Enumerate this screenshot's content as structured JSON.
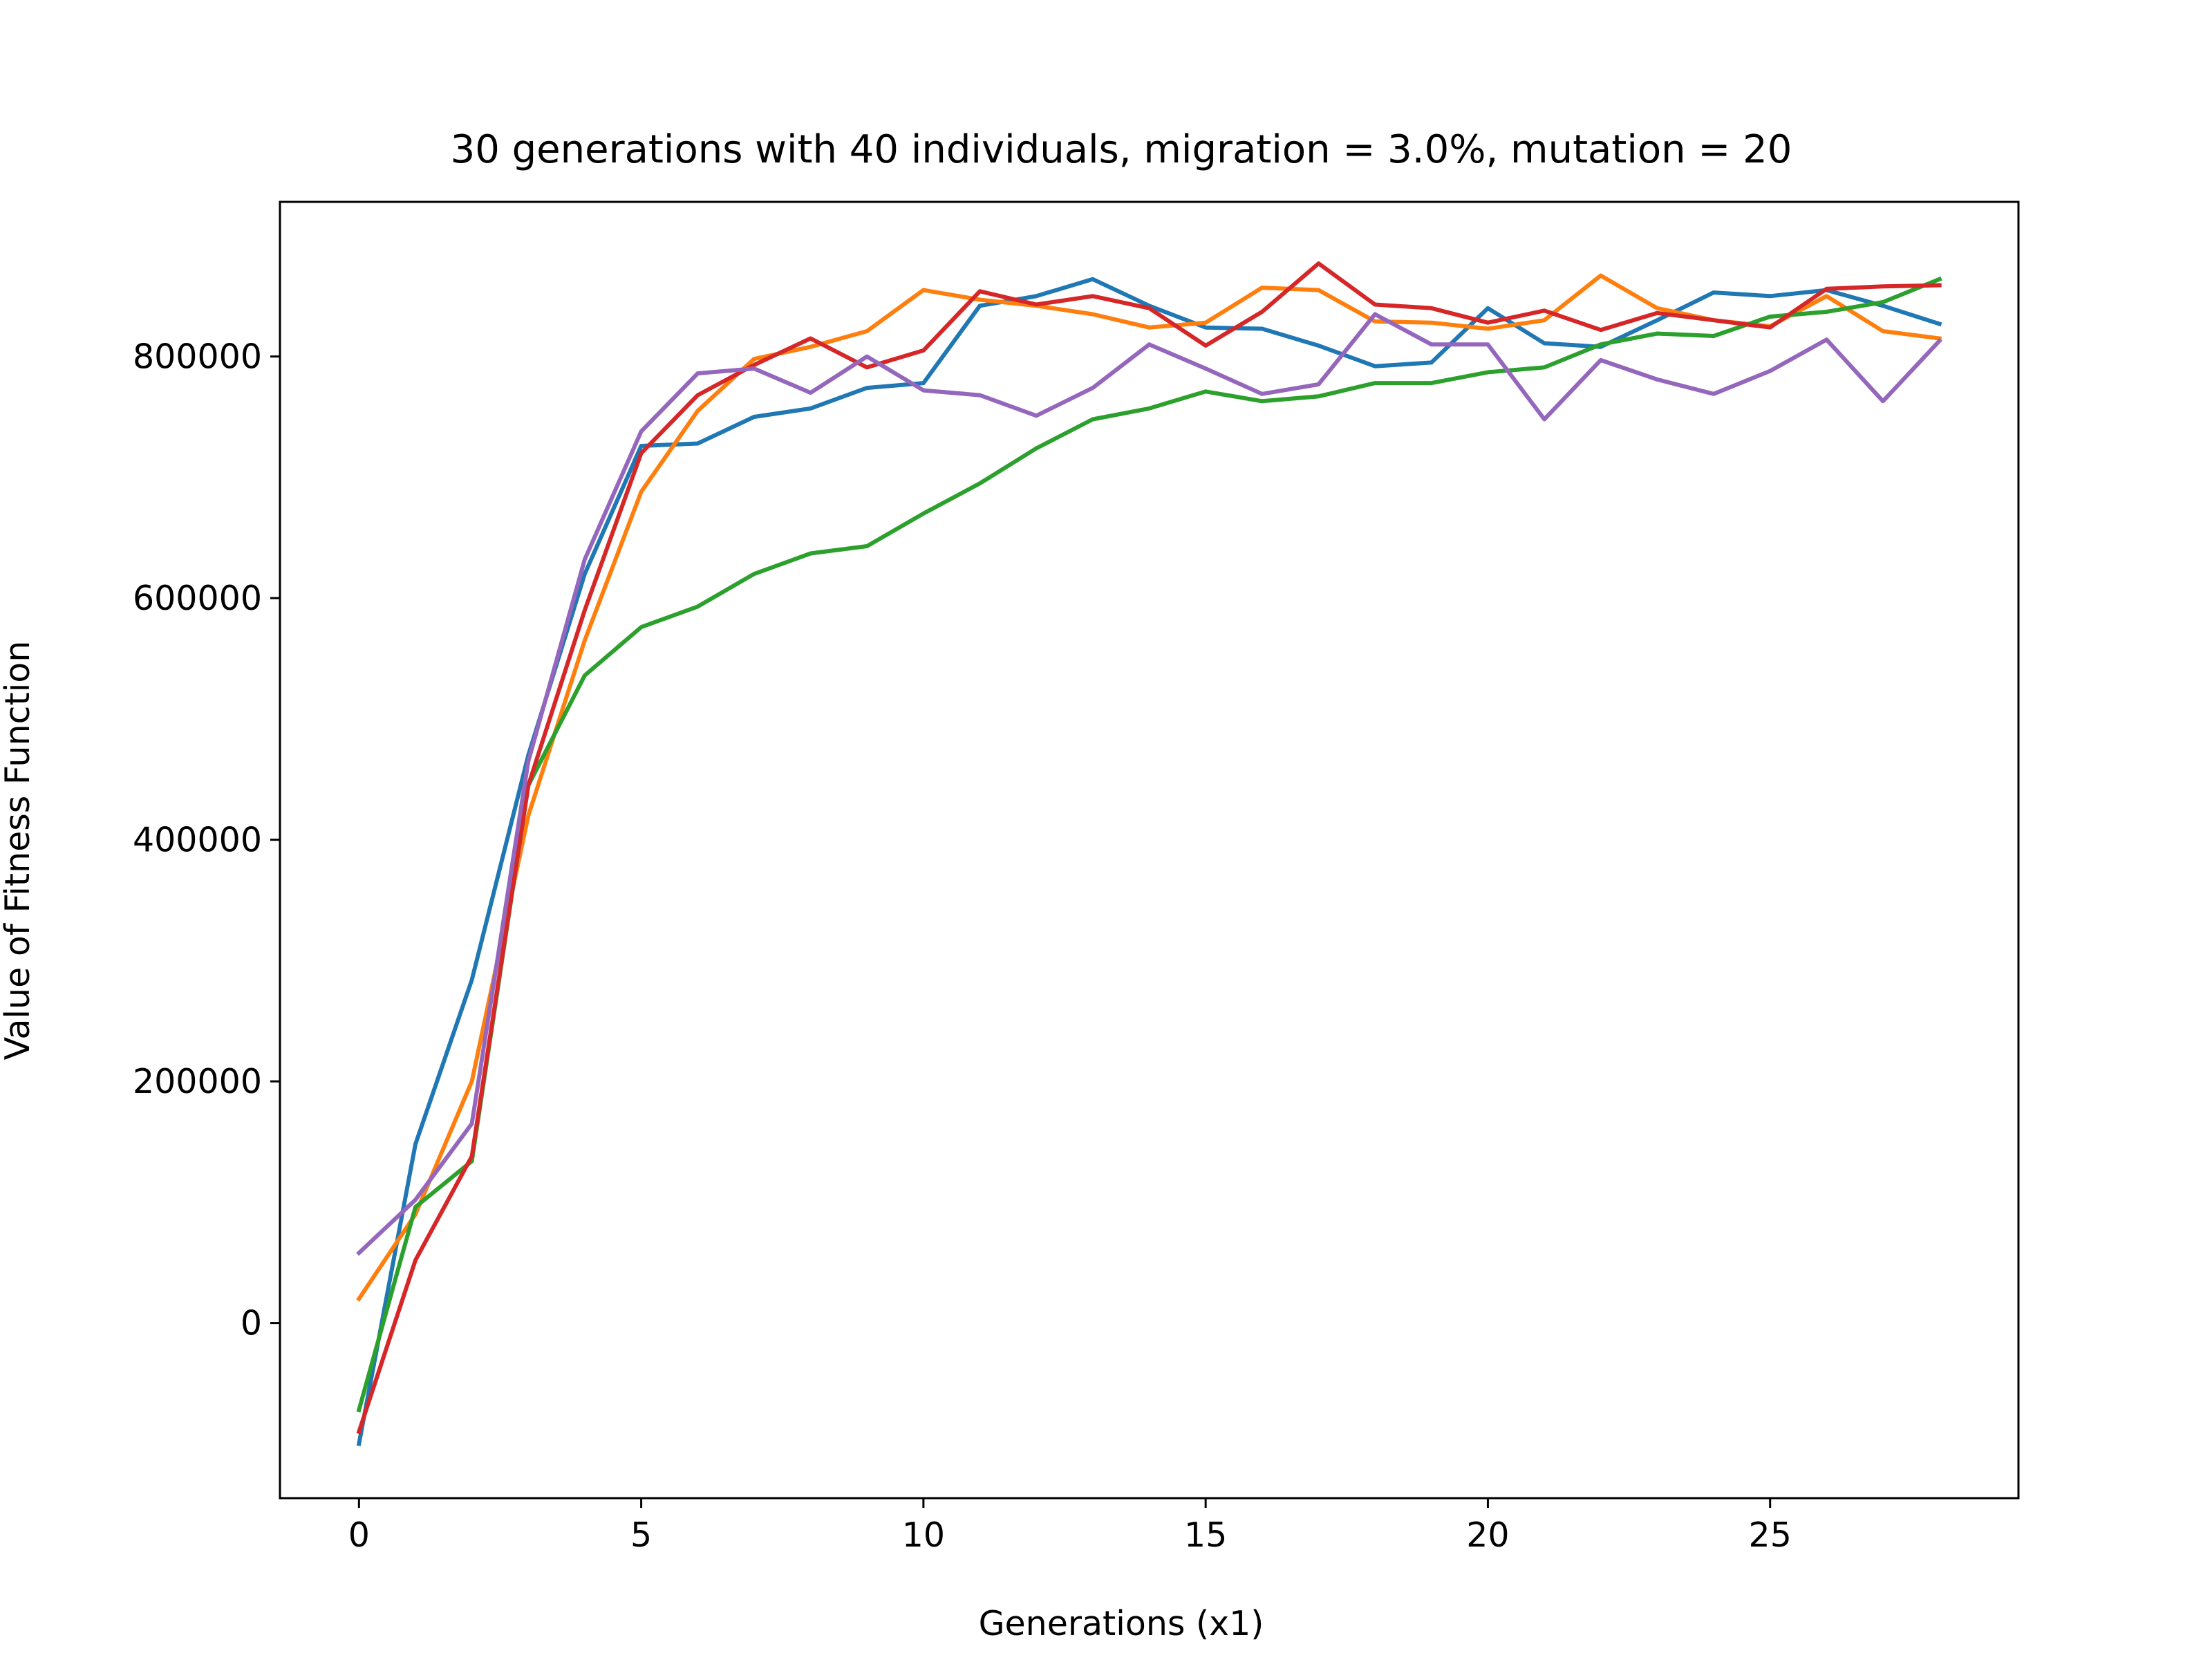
{
  "chart_data": {
    "type": "line",
    "title": "30 generations with 40 individuals, migration = 3.0%, mutation = 20",
    "xlabel": "Generations (x1)",
    "ylabel": "Value of Fitness Function",
    "xlim": [
      -1.4,
      29.4
    ],
    "ylim": [
      -145000,
      928000
    ],
    "x_ticks": [
      0,
      5,
      10,
      15,
      20,
      25
    ],
    "y_ticks": [
      0,
      200000,
      400000,
      600000,
      800000
    ],
    "x": [
      0,
      1,
      2,
      3,
      4,
      5,
      6,
      7,
      8,
      9,
      10,
      11,
      12,
      13,
      14,
      15,
      16,
      17,
      18,
      19,
      20,
      21,
      22,
      23,
      24,
      25,
      26,
      27,
      28
    ],
    "grid": false,
    "legend": "none",
    "series": [
      {
        "color": "#1f77b4",
        "values": [
          -100000,
          148000,
          284000,
          470000,
          620000,
          726000,
          728000,
          750000,
          757000,
          774000,
          778000,
          842000,
          850000,
          864000,
          842000,
          824000,
          823000,
          809000,
          792000,
          795000,
          840000,
          811000,
          808000,
          830000,
          853000,
          850000,
          855000,
          842000,
          827000
        ]
      },
      {
        "color": "#ff7f0e",
        "values": [
          20000,
          90000,
          200000,
          420000,
          565000,
          688000,
          755000,
          798000,
          808000,
          821000,
          855000,
          847000,
          842000,
          835000,
          824000,
          828000,
          857000,
          855000,
          829000,
          828000,
          823000,
          830000,
          867000,
          840000,
          830000,
          825000,
          850000,
          821000,
          815000
        ]
      },
      {
        "color": "#2ca02c",
        "values": [
          -72000,
          96000,
          134000,
          445000,
          536000,
          576000,
          593000,
          620000,
          637000,
          643000,
          670000,
          695000,
          724000,
          748000,
          757000,
          771000,
          763000,
          767000,
          778000,
          778000,
          787000,
          791000,
          810000,
          819000,
          817000,
          833000,
          837000,
          845000,
          864000
        ]
      },
      {
        "color": "#d62728",
        "values": [
          -90000,
          52000,
          138000,
          445000,
          590000,
          720000,
          768000,
          793000,
          815000,
          791000,
          805000,
          854000,
          843000,
          850000,
          840000,
          809000,
          837000,
          877000,
          843000,
          840000,
          828000,
          838000,
          822000,
          836000,
          830000,
          824000,
          856000,
          858000,
          859000
        ]
      },
      {
        "color": "#9467bd",
        "values": [
          58000,
          102000,
          165000,
          465000,
          632000,
          738000,
          786000,
          790000,
          770000,
          800000,
          772000,
          768000,
          751000,
          774000,
          810000,
          790000,
          769000,
          777000,
          835000,
          810000,
          810000,
          748000,
          797000,
          781000,
          769000,
          788000,
          814000,
          763000,
          813000
        ]
      }
    ]
  }
}
